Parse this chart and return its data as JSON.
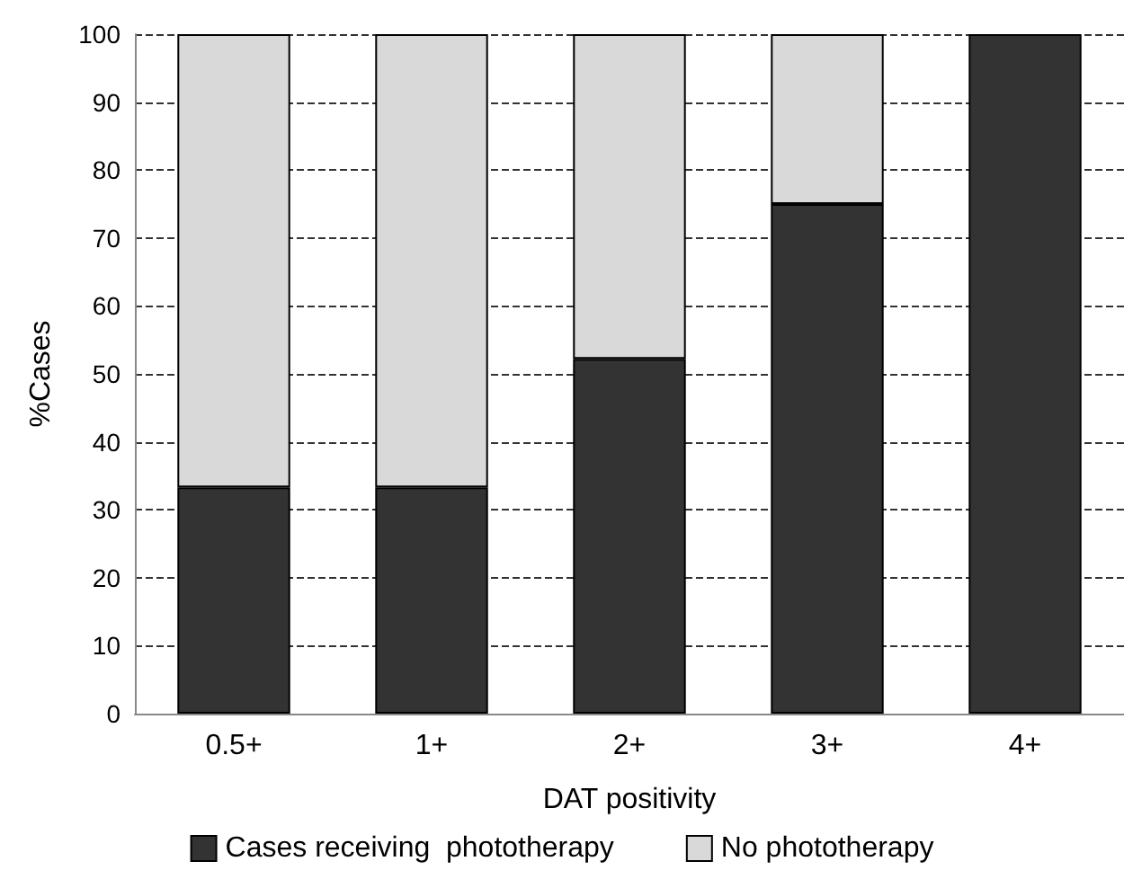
{
  "chart_data": {
    "type": "bar",
    "stacked": true,
    "xlabel": "DAT positivity",
    "ylabel": "%Cases",
    "categories": [
      "0.5+",
      "1+",
      "2+",
      "3+",
      "4+"
    ],
    "series": [
      {
        "name": "Cases receiving  phototherapy",
        "color": "#333333",
        "values": [
          33.3,
          33.3,
          52.2,
          75,
          100
        ]
      },
      {
        "name": "No phototherapy",
        "color": "#d9d9d9",
        "values": [
          66.7,
          66.7,
          47.8,
          25,
          0
        ]
      }
    ],
    "ylim": [
      0,
      100
    ],
    "yticks": [
      0,
      10,
      20,
      30,
      40,
      50,
      60,
      70,
      80,
      90,
      100
    ],
    "grid": "y",
    "legend": "bottom"
  }
}
